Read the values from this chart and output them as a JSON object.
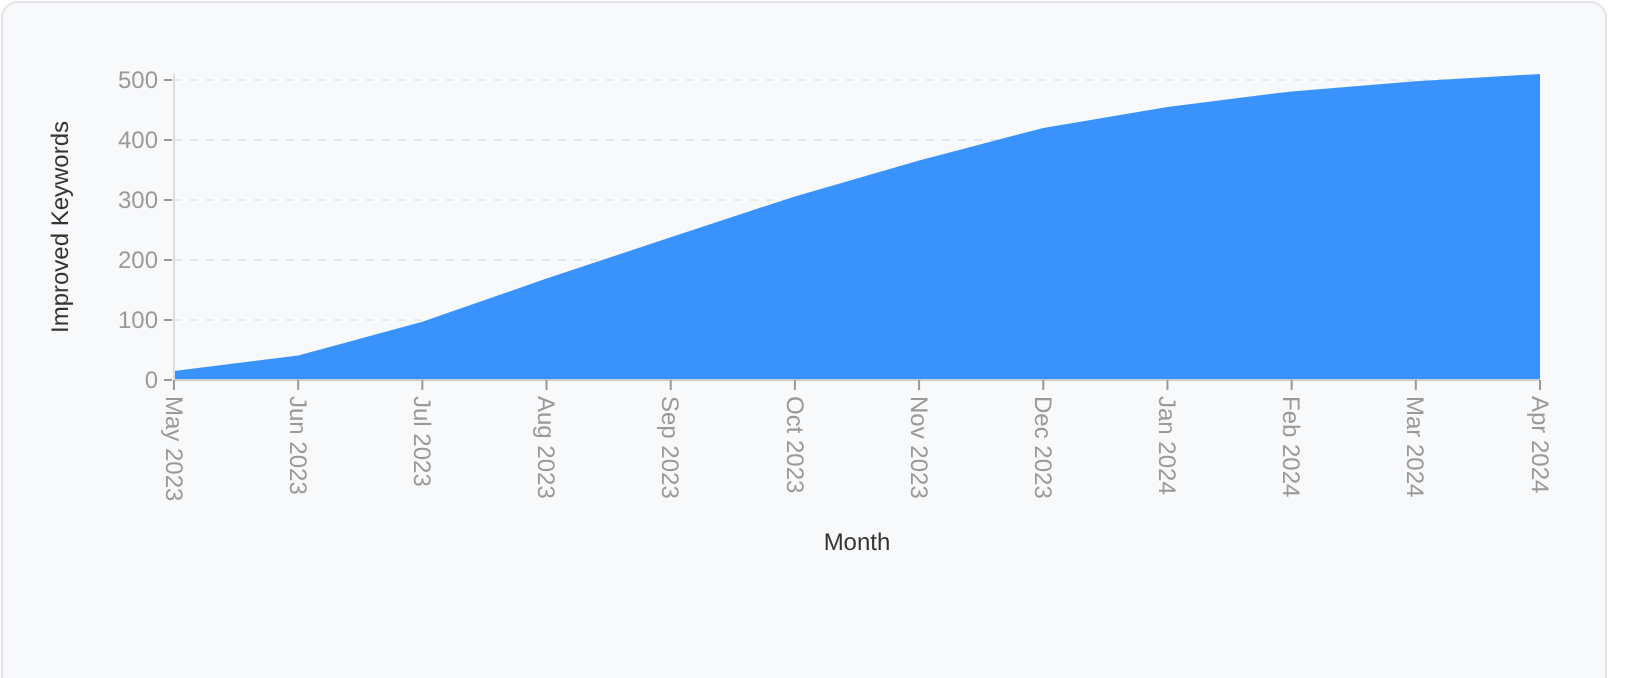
{
  "chart_data": {
    "type": "area",
    "xlabel": "Month",
    "ylabel": "Improved Keywords",
    "categories": [
      "May 2023",
      "Jun 2023",
      "Jul 2023",
      "Aug 2023",
      "Sep 2023",
      "Oct 2023",
      "Nov 2023",
      "Dec 2023",
      "Jan 2024",
      "Feb 2024",
      "Mar 2024",
      "Apr 2024"
    ],
    "series": [
      {
        "color": "#3a93fd",
        "values": [
          15,
          41,
          97,
          169,
          238,
          306,
          366,
          420,
          455,
          481,
          498,
          510
        ]
      }
    ],
    "ylim": [
      0,
      510
    ],
    "yticks": [
      0,
      100,
      200,
      300,
      400,
      500
    ],
    "grid": "y"
  }
}
